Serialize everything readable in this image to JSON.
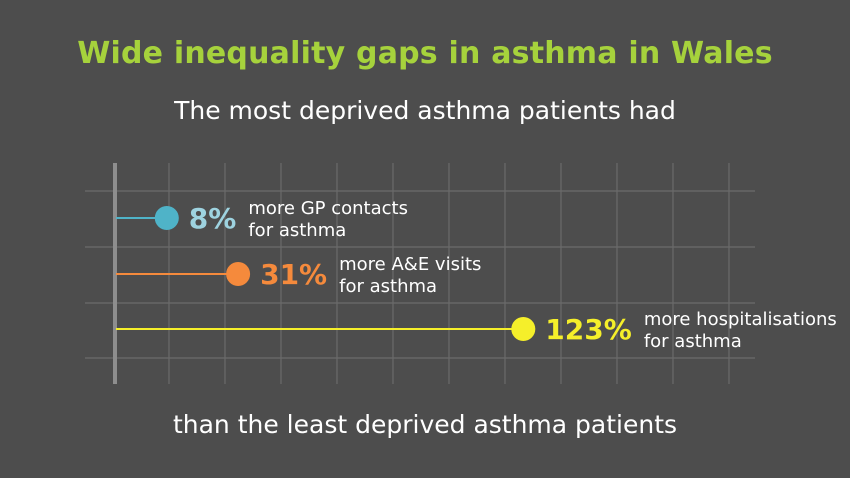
{
  "title": "Wide inequality gaps in asthma in Wales",
  "subtitle": "The most deprived asthma patients had",
  "footer": "than the least deprived asthma patients",
  "colors": {
    "background": "#4d4d4d",
    "title": "#a6d23c",
    "grid": "#6b6b6b",
    "axis": "#8e8e8e"
  },
  "chart_data": {
    "type": "lollipop",
    "title": "Wide inequality gaps in asthma in Wales",
    "xlabel": "",
    "ylabel": "",
    "xlim": [
      0,
      200
    ],
    "grid": true,
    "series": [
      {
        "name": "GP contacts",
        "value": 8,
        "label": "8%",
        "line1": "more GP contacts",
        "line2": "for asthma",
        "color": "#4fb3c8",
        "label_color": "#9ed3e0"
      },
      {
        "name": "A&E visits",
        "value": 31,
        "label": "31%",
        "line1": "more A&E visits",
        "line2": "for asthma",
        "color": "#f58a3c",
        "label_color": "#f58a3c"
      },
      {
        "name": "Hospitalisations",
        "value": 123,
        "label": "123%",
        "line1": "more hospitalisations",
        "line2": "for asthma",
        "color": "#f5ef2a",
        "label_color": "#f5ef2a"
      }
    ]
  }
}
